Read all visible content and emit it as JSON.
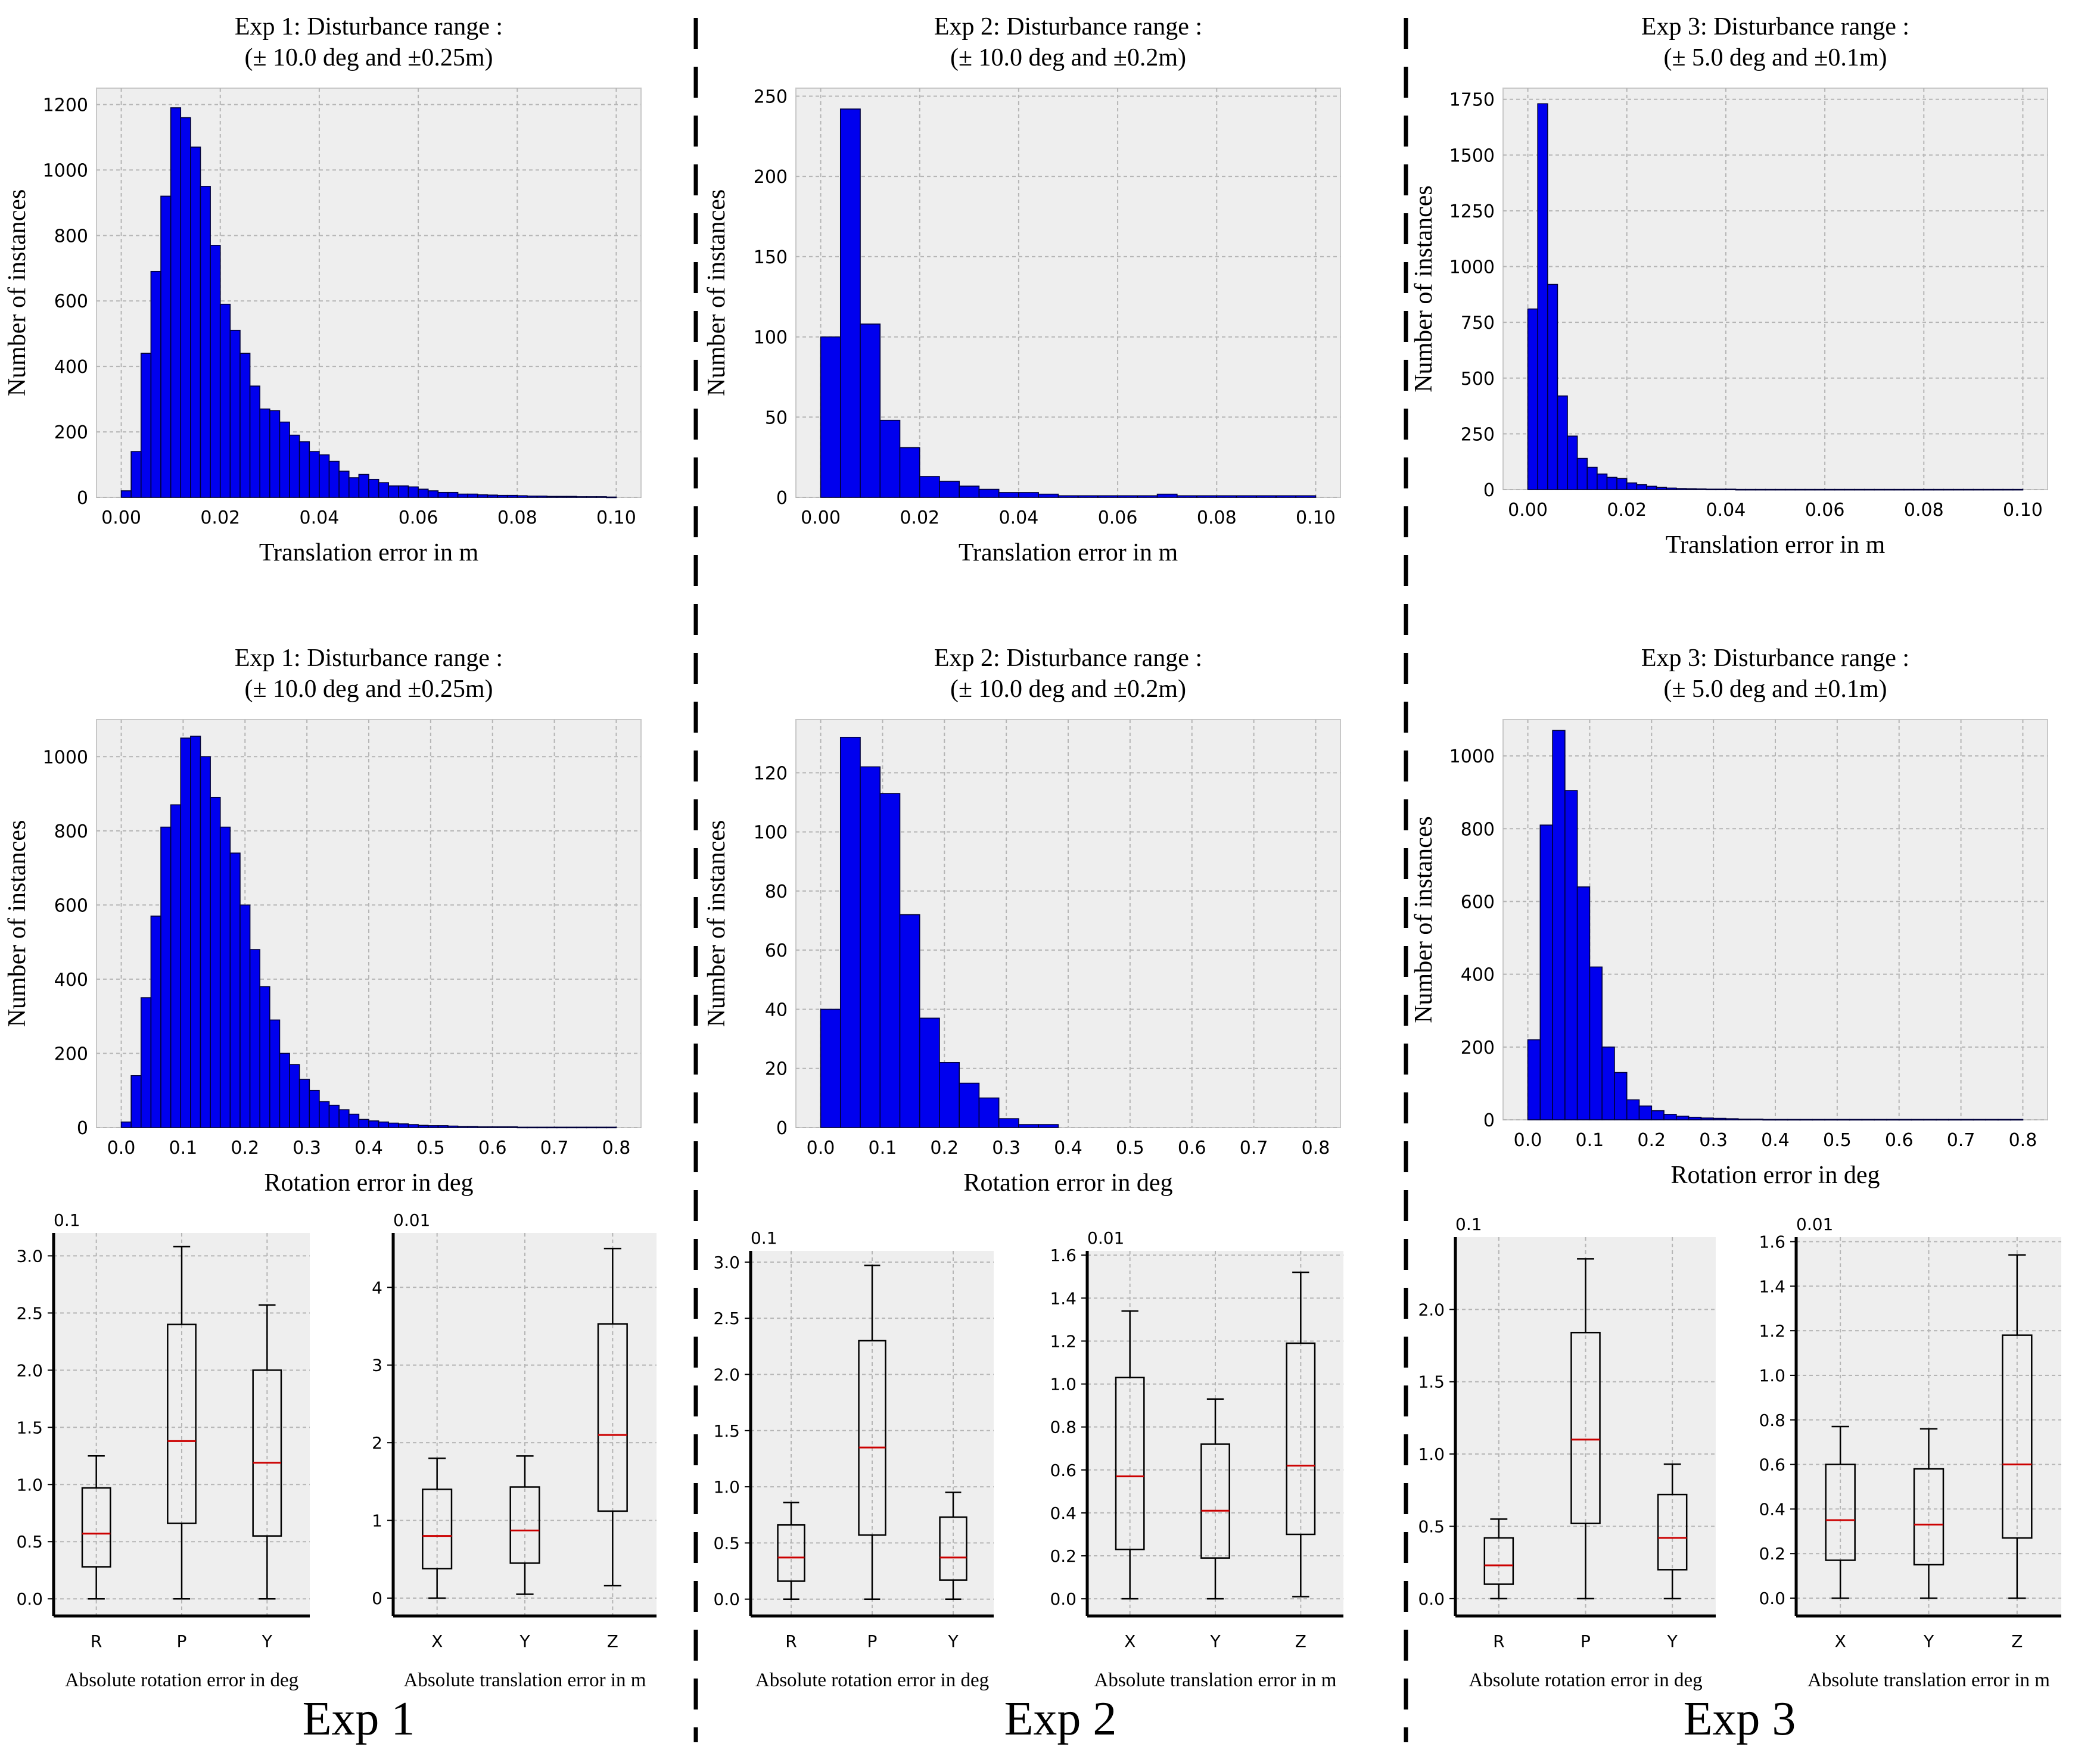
{
  "colors": {
    "bar_fill": "#0000ee",
    "bar_edge": "#00003a",
    "panel_bg": "#eeeeee",
    "grid": "#b5b5b5",
    "median": "#cc0000",
    "axis": "#000000",
    "separator": "#000000"
  },
  "experiments": [
    {
      "label": "Exp 1"
    },
    {
      "label": "Exp 2"
    },
    {
      "label": "Exp 3"
    }
  ],
  "chart_data": [
    {
      "id": "exp1-translation-hist",
      "type": "bar",
      "title": [
        "Exp 1: Disturbance range :",
        "(± 10.0 deg and ±0.25m)"
      ],
      "xlabel": "Translation error in m",
      "ylabel": "Number of instances",
      "bin_start": 0.0,
      "bin_width": 0.002,
      "xlim": [
        -0.005,
        0.105
      ],
      "ylim": [
        0,
        1250
      ],
      "xticks": [
        0.0,
        0.02,
        0.04,
        0.06,
        0.08,
        0.1
      ],
      "xtick_labels": [
        "0.00",
        "0.02",
        "0.04",
        "0.06",
        "0.08",
        "0.10"
      ],
      "yticks": [
        0,
        200,
        400,
        600,
        800,
        1000,
        1200
      ],
      "ytick_labels": [
        "0",
        "200",
        "400",
        "600",
        "800",
        "1000",
        "1200"
      ],
      "values": [
        20,
        140,
        440,
        690,
        920,
        1190,
        1160,
        1070,
        950,
        770,
        590,
        510,
        440,
        340,
        270,
        265,
        230,
        190,
        170,
        140,
        130,
        110,
        80,
        60,
        70,
        55,
        45,
        35,
        35,
        32,
        25,
        20,
        15,
        15,
        10,
        10,
        8,
        7,
        6,
        6,
        5,
        4,
        4,
        3,
        3,
        3,
        2,
        2,
        2,
        1
      ]
    },
    {
      "id": "exp2-translation-hist",
      "type": "bar",
      "title": [
        "Exp 2: Disturbance range :",
        "(± 10.0 deg and ±0.2m)"
      ],
      "xlabel": "Translation error in m",
      "ylabel": "Number of instances",
      "bin_start": 0.0,
      "bin_width": 0.004,
      "xlim": [
        -0.005,
        0.105
      ],
      "ylim": [
        0,
        255
      ],
      "xticks": [
        0.0,
        0.02,
        0.04,
        0.06,
        0.08,
        0.1
      ],
      "xtick_labels": [
        "0.00",
        "0.02",
        "0.04",
        "0.06",
        "0.08",
        "0.10"
      ],
      "yticks": [
        0,
        50,
        100,
        150,
        200,
        250
      ],
      "ytick_labels": [
        "0",
        "50",
        "100",
        "150",
        "200",
        "250"
      ],
      "values": [
        100,
        242,
        108,
        48,
        31,
        13,
        10,
        7,
        5,
        3,
        3,
        2,
        1,
        1,
        1,
        1,
        1,
        2,
        1,
        1,
        1,
        1,
        1,
        1,
        1
      ]
    },
    {
      "id": "exp3-translation-hist",
      "type": "bar",
      "title": [
        "Exp 3: Disturbance range :",
        "(± 5.0 deg and ±0.1m)"
      ],
      "xlabel": "Translation error in m",
      "ylabel": "Number of instances",
      "bin_start": 0.0,
      "bin_width": 0.002,
      "xlim": [
        -0.005,
        0.105
      ],
      "ylim": [
        0,
        1800
      ],
      "xticks": [
        0.0,
        0.02,
        0.04,
        0.06,
        0.08,
        0.1
      ],
      "xtick_labels": [
        "0.00",
        "0.02",
        "0.04",
        "0.06",
        "0.08",
        "0.10"
      ],
      "yticks": [
        0,
        250,
        500,
        750,
        1000,
        1250,
        1500,
        1750
      ],
      "ytick_labels": [
        "0",
        "250",
        "500",
        "750",
        "1000",
        "1250",
        "1500",
        "1750"
      ],
      "values": [
        810,
        1730,
        920,
        420,
        240,
        140,
        100,
        70,
        55,
        50,
        30,
        22,
        15,
        10,
        7,
        5,
        4,
        3,
        2,
        2,
        2,
        1,
        1,
        1,
        1,
        1,
        1,
        1,
        1,
        1,
        1,
        1,
        1,
        1,
        1,
        1,
        1,
        1,
        1,
        1,
        1,
        1,
        1,
        1,
        1,
        1,
        1,
        1,
        1,
        1
      ]
    },
    {
      "id": "exp1-rotation-hist",
      "type": "bar",
      "title": [
        "Exp 1: Disturbance range :",
        "(± 10.0 deg and ±0.25m)"
      ],
      "xlabel": "Rotation error in deg",
      "ylabel": "Number of instances",
      "bin_start": 0.0,
      "bin_width": 0.016,
      "xlim": [
        -0.04,
        0.84
      ],
      "ylim": [
        0,
        1100
      ],
      "xticks": [
        0,
        0.1,
        0.2,
        0.3,
        0.4,
        0.5,
        0.6,
        0.7,
        0.8
      ],
      "xtick_labels": [
        "0.0",
        "0.1",
        "0.2",
        "0.3",
        "0.4",
        "0.5",
        "0.6",
        "0.7",
        "0.8"
      ],
      "yticks": [
        0,
        200,
        400,
        600,
        800,
        1000
      ],
      "ytick_labels": [
        "0",
        "200",
        "400",
        "600",
        "800",
        "1000"
      ],
      "values": [
        15,
        140,
        350,
        570,
        810,
        870,
        1050,
        1055,
        1000,
        890,
        810,
        740,
        600,
        480,
        380,
        290,
        200,
        170,
        130,
        100,
        70,
        60,
        48,
        36,
        22,
        18,
        15,
        12,
        10,
        8,
        6,
        5,
        5,
        4,
        3,
        3,
        2,
        2,
        2,
        2,
        1,
        1,
        1,
        1,
        1,
        1,
        1,
        1,
        1,
        1
      ]
    },
    {
      "id": "exp2-rotation-hist",
      "type": "bar",
      "title": [
        "Exp 2: Disturbance range :",
        "(± 10.0 deg and ±0.2m)"
      ],
      "xlabel": "Rotation error in deg",
      "ylabel": "Number of instances",
      "bin_start": 0.0,
      "bin_width": 0.032,
      "xlim": [
        -0.04,
        0.84
      ],
      "ylim": [
        0,
        138
      ],
      "xticks": [
        0,
        0.1,
        0.2,
        0.3,
        0.4,
        0.5,
        0.6,
        0.7,
        0.8
      ],
      "xtick_labels": [
        "0.0",
        "0.1",
        "0.2",
        "0.3",
        "0.4",
        "0.5",
        "0.6",
        "0.7",
        "0.8"
      ],
      "yticks": [
        0,
        20,
        40,
        60,
        80,
        100,
        120
      ],
      "ytick_labels": [
        "0",
        "20",
        "40",
        "60",
        "80",
        "100",
        "120"
      ],
      "values": [
        40,
        132,
        122,
        113,
        72,
        37,
        22,
        15,
        10,
        3,
        1,
        1,
        0,
        0,
        0,
        0,
        0,
        0,
        0,
        0,
        0,
        0,
        0,
        0,
        0
      ]
    },
    {
      "id": "exp3-rotation-hist",
      "type": "bar",
      "title": [
        "Exp 3: Disturbance range :",
        "(± 5.0 deg and ±0.1m)"
      ],
      "xlabel": "Rotation error in deg",
      "ylabel": "Number of instances",
      "bin_start": 0.0,
      "bin_width": 0.02,
      "xlim": [
        -0.04,
        0.84
      ],
      "ylim": [
        0,
        1100
      ],
      "xticks": [
        0,
        0.1,
        0.2,
        0.3,
        0.4,
        0.5,
        0.6,
        0.7,
        0.8
      ],
      "xtick_labels": [
        "0.0",
        "0.1",
        "0.2",
        "0.3",
        "0.4",
        "0.5",
        "0.6",
        "0.7",
        "0.8"
      ],
      "yticks": [
        0,
        200,
        400,
        600,
        800,
        1000
      ],
      "ytick_labels": [
        "0",
        "200",
        "400",
        "600",
        "800",
        "1000"
      ],
      "values": [
        220,
        810,
        1070,
        905,
        640,
        420,
        200,
        130,
        55,
        38,
        25,
        15,
        10,
        7,
        5,
        4,
        3,
        2,
        2,
        1,
        1,
        1,
        1,
        1,
        1,
        1,
        1,
        1,
        1,
        1,
        1,
        1,
        1,
        1,
        1,
        1,
        1,
        1,
        1,
        1
      ]
    },
    {
      "id": "exp1-rotation-box",
      "type": "box",
      "xlabel": "Absolute rotation error in deg",
      "scale_label": "0.1",
      "categories": [
        "R",
        "P",
        "Y"
      ],
      "ylim": [
        -0.15,
        3.2
      ],
      "yticks": [
        0,
        0.5,
        1,
        1.5,
        2,
        2.5,
        3
      ],
      "ytick_labels": [
        "0.0",
        "0.5",
        "1.0",
        "1.5",
        "2.0",
        "2.5",
        "3.0"
      ],
      "boxes": [
        {
          "whislo": 0.0,
          "q1": 0.28,
          "med": 0.57,
          "q3": 0.97,
          "whishi": 1.25
        },
        {
          "whislo": 0.0,
          "q1": 0.66,
          "med": 1.38,
          "q3": 2.4,
          "whishi": 3.08
        },
        {
          "whislo": 0.0,
          "q1": 0.55,
          "med": 1.19,
          "q3": 2.0,
          "whishi": 2.57
        }
      ]
    },
    {
      "id": "exp1-translation-box",
      "type": "box",
      "xlabel": "Absolute translation error in m",
      "scale_label": "0.01",
      "categories": [
        "X",
        "Y",
        "Z"
      ],
      "ylim": [
        -0.23,
        4.7
      ],
      "yticks": [
        0,
        1,
        2,
        3,
        4
      ],
      "ytick_labels": [
        "0",
        "1",
        "2",
        "3",
        "4"
      ],
      "boxes": [
        {
          "whislo": 0.0,
          "q1": 0.38,
          "med": 0.8,
          "q3": 1.4,
          "whishi": 1.8
        },
        {
          "whislo": 0.05,
          "q1": 0.45,
          "med": 0.87,
          "q3": 1.43,
          "whishi": 1.83
        },
        {
          "whislo": 0.16,
          "q1": 1.12,
          "med": 2.1,
          "q3": 3.53,
          "whishi": 4.5
        }
      ]
    },
    {
      "id": "exp2-rotation-box",
      "type": "box",
      "xlabel": "Absolute rotation error in deg",
      "scale_label": "0.1",
      "categories": [
        "R",
        "P",
        "Y"
      ],
      "ylim": [
        -0.15,
        3.1
      ],
      "yticks": [
        0,
        0.5,
        1,
        1.5,
        2,
        2.5,
        3
      ],
      "ytick_labels": [
        "0.0",
        "0.5",
        "1.0",
        "1.5",
        "2.0",
        "2.5",
        "3.0"
      ],
      "boxes": [
        {
          "whislo": 0.0,
          "q1": 0.16,
          "med": 0.37,
          "q3": 0.66,
          "whishi": 0.86
        },
        {
          "whislo": 0.0,
          "q1": 0.57,
          "med": 1.35,
          "q3": 2.3,
          "whishi": 2.97
        },
        {
          "whislo": 0.0,
          "q1": 0.17,
          "med": 0.37,
          "q3": 0.73,
          "whishi": 0.95
        }
      ]
    },
    {
      "id": "exp2-translation-box",
      "type": "box",
      "xlabel": "Absolute translation error in m",
      "scale_label": "0.01",
      "categories": [
        "X",
        "Y",
        "Z"
      ],
      "ylim": [
        -0.08,
        1.62
      ],
      "yticks": [
        0,
        0.2,
        0.4,
        0.6,
        0.8,
        1.0,
        1.2,
        1.4,
        1.6
      ],
      "ytick_labels": [
        "0.0",
        "0.2",
        "0.4",
        "0.6",
        "0.8",
        "1.0",
        "1.2",
        "1.4",
        "1.6"
      ],
      "boxes": [
        {
          "whislo": 0.0,
          "q1": 0.23,
          "med": 0.57,
          "q3": 1.03,
          "whishi": 1.34
        },
        {
          "whislo": 0.0,
          "q1": 0.19,
          "med": 0.41,
          "q3": 0.72,
          "whishi": 0.93
        },
        {
          "whislo": 0.01,
          "q1": 0.3,
          "med": 0.62,
          "q3": 1.19,
          "whishi": 1.52
        }
      ]
    },
    {
      "id": "exp3-rotation-box",
      "type": "box",
      "xlabel": "Absolute rotation error in deg",
      "scale_label": "0.1",
      "categories": [
        "R",
        "P",
        "Y"
      ],
      "ylim": [
        -0.12,
        2.5
      ],
      "yticks": [
        0,
        0.5,
        1,
        1.5,
        2
      ],
      "ytick_labels": [
        "0.0",
        "0.5",
        "1.0",
        "1.5",
        "2.0"
      ],
      "boxes": [
        {
          "whislo": 0.0,
          "q1": 0.1,
          "med": 0.23,
          "q3": 0.42,
          "whishi": 0.55
        },
        {
          "whislo": 0.0,
          "q1": 0.52,
          "med": 1.1,
          "q3": 1.84,
          "whishi": 2.35
        },
        {
          "whislo": 0.0,
          "q1": 0.2,
          "med": 0.42,
          "q3": 0.72,
          "whishi": 0.93
        }
      ]
    },
    {
      "id": "exp3-translation-box",
      "type": "box",
      "xlabel": "Absolute translation error in m",
      "scale_label": "0.01",
      "categories": [
        "X",
        "Y",
        "Z"
      ],
      "ylim": [
        -0.08,
        1.62
      ],
      "yticks": [
        0,
        0.2,
        0.4,
        0.6,
        0.8,
        1.0,
        1.2,
        1.4,
        1.6
      ],
      "ytick_labels": [
        "0.0",
        "0.2",
        "0.4",
        "0.6",
        "0.8",
        "1.0",
        "1.2",
        "1.4",
        "1.6"
      ],
      "boxes": [
        {
          "whislo": 0.0,
          "q1": 0.17,
          "med": 0.35,
          "q3": 0.6,
          "whishi": 0.77
        },
        {
          "whislo": 0.0,
          "q1": 0.15,
          "med": 0.33,
          "q3": 0.58,
          "whishi": 0.76
        },
        {
          "whislo": 0.0,
          "q1": 0.27,
          "med": 0.6,
          "q3": 1.18,
          "whishi": 1.54
        }
      ]
    }
  ]
}
